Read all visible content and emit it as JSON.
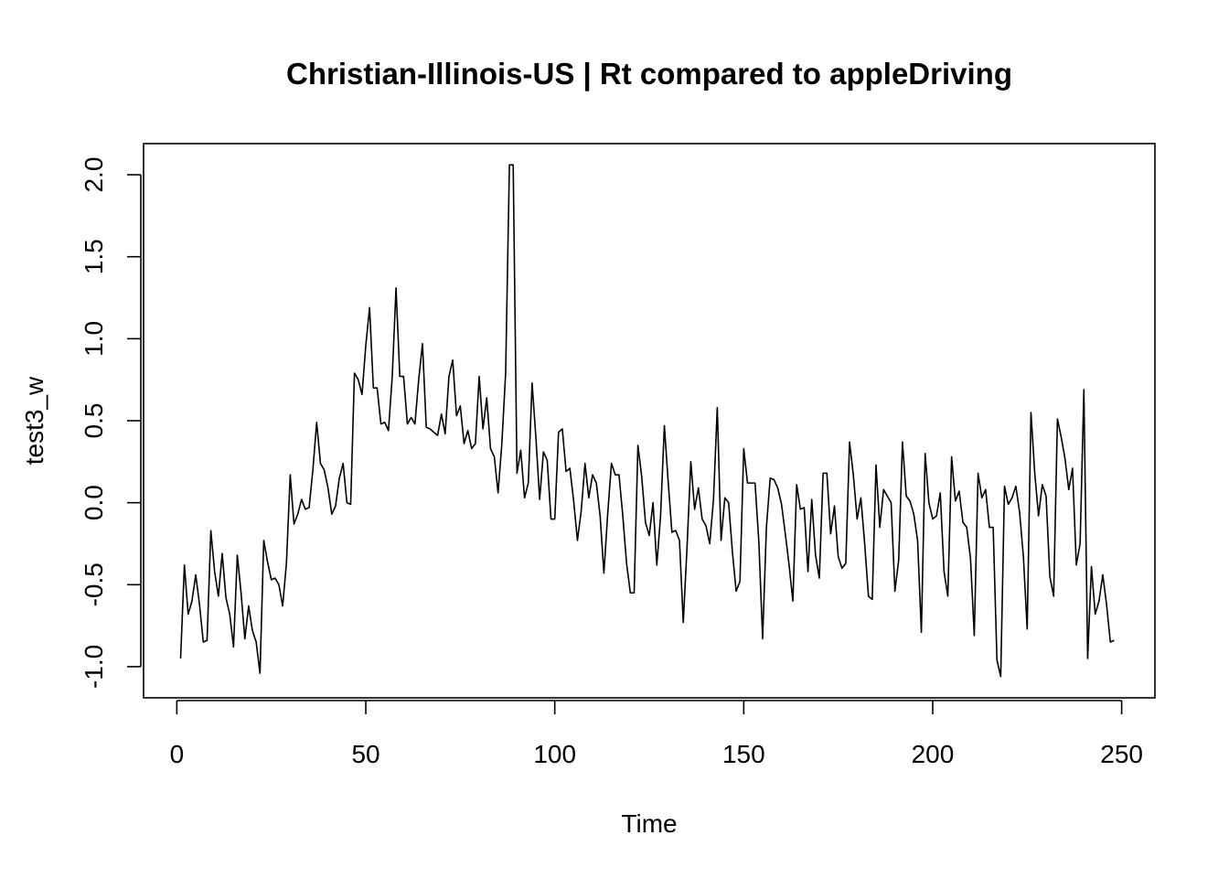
{
  "chart_data": {
    "type": "line",
    "title": "Christian-Illinois-US | Rt compared to appleDriving",
    "xlabel": "Time",
    "ylabel": "test3_w",
    "xlim": [
      -8.8,
      258.8
    ],
    "ylim": [
      -1.19,
      2.19
    ],
    "x_ticks": [
      0,
      50,
      100,
      150,
      200,
      250
    ],
    "x_tick_labels": [
      "0",
      "50",
      "100",
      "150",
      "200",
      "250"
    ],
    "y_ticks": [
      -1.0,
      -0.5,
      0.0,
      0.5,
      1.0,
      1.5,
      2.0
    ],
    "y_tick_labels": [
      "-1.0",
      "-0.5",
      "0.0",
      "0.5",
      "1.0",
      "1.5",
      "2.0"
    ],
    "grid": false,
    "legend": "none",
    "series": [
      {
        "color": "#000000",
        "x": [
          1,
          2,
          3,
          4,
          5,
          6,
          7,
          8,
          9,
          10,
          11,
          12,
          13,
          14,
          15,
          16,
          17,
          18,
          19,
          20,
          21,
          22,
          23,
          24,
          25,
          26,
          27,
          28,
          29,
          30,
          31,
          32,
          33,
          34,
          35,
          36,
          37,
          38,
          39,
          40,
          41,
          42,
          43,
          44,
          45,
          46,
          47,
          48,
          49,
          50,
          51,
          52,
          53,
          54,
          55,
          56,
          57,
          58,
          59,
          60,
          61,
          62,
          63,
          64,
          65,
          66,
          67,
          68,
          69,
          70,
          71,
          72,
          73,
          74,
          75,
          76,
          77,
          78,
          79,
          80,
          81,
          82,
          83,
          84,
          85,
          86,
          87,
          88,
          89,
          90,
          91,
          92,
          93,
          94,
          95,
          96,
          97,
          98,
          99,
          100,
          101,
          102,
          103,
          104,
          105,
          106,
          107,
          108,
          109,
          110,
          111,
          112,
          113,
          114,
          115,
          116,
          117,
          118,
          119,
          120,
          121,
          122,
          123,
          124,
          125,
          126,
          127,
          128,
          129,
          130,
          131,
          132,
          133,
          134,
          135,
          136,
          137,
          138,
          139,
          140,
          141,
          142,
          143,
          144,
          145,
          146,
          147,
          148,
          149,
          150,
          151,
          152,
          153,
          154,
          155,
          156,
          157,
          158,
          159,
          160,
          161,
          162,
          163,
          164,
          165,
          166,
          167,
          168,
          169,
          170,
          171,
          172,
          173,
          174,
          175,
          176,
          177,
          178,
          179,
          180,
          181,
          182,
          183,
          184,
          185,
          186,
          187,
          188,
          189,
          190,
          191,
          192,
          193,
          194,
          195,
          196,
          197,
          198,
          199,
          200,
          201,
          202,
          203,
          204,
          205,
          206,
          207,
          208,
          209,
          210,
          211,
          212,
          213,
          214,
          215,
          216,
          217,
          218,
          219,
          220,
          221,
          222,
          223,
          224,
          225,
          226,
          227,
          228,
          229,
          230,
          231,
          232,
          233,
          234,
          235,
          236,
          237,
          238,
          239,
          240,
          241,
          242,
          243,
          244,
          245,
          246,
          247,
          248
        ],
        "y": [
          -0.95,
          -0.38,
          -0.68,
          -0.6,
          -0.44,
          -0.62,
          -0.85,
          -0.84,
          -0.17,
          -0.42,
          -0.57,
          -0.31,
          -0.58,
          -0.68,
          -0.88,
          -0.32,
          -0.55,
          -0.83,
          -0.63,
          -0.78,
          -0.85,
          -1.04,
          -0.23,
          -0.36,
          -0.47,
          -0.46,
          -0.5,
          -0.63,
          -0.37,
          0.17,
          -0.13,
          -0.07,
          0.02,
          -0.04,
          -0.03,
          0.2,
          0.49,
          0.24,
          0.2,
          0.09,
          -0.07,
          -0.02,
          0.15,
          0.24,
          -0.0,
          -0.01,
          0.79,
          0.75,
          0.66,
          0.96,
          1.19,
          0.7,
          0.7,
          0.48,
          0.49,
          0.44,
          0.77,
          1.31,
          0.77,
          0.77,
          0.48,
          0.52,
          0.48,
          0.75,
          0.97,
          0.46,
          0.45,
          0.43,
          0.41,
          0.54,
          0.42,
          0.77,
          0.87,
          0.53,
          0.59,
          0.36,
          0.44,
          0.33,
          0.36,
          0.77,
          0.45,
          0.64,
          0.33,
          0.28,
          0.06,
          0.36,
          0.79,
          2.06,
          2.06,
          0.18,
          0.32,
          0.03,
          0.12,
          0.73,
          0.4,
          0.02,
          0.31,
          0.26,
          -0.1,
          -0.1,
          0.43,
          0.45,
          0.19,
          0.21,
          0.01,
          -0.23,
          -0.05,
          0.24,
          0.03,
          0.17,
          0.12,
          -0.08,
          -0.43,
          -0.07,
          0.24,
          0.17,
          0.17,
          -0.08,
          -0.37,
          -0.55,
          -0.55,
          0.35,
          0.16,
          -0.12,
          -0.2,
          0.0,
          -0.38,
          -0.08,
          0.47,
          0.13,
          -0.18,
          -0.17,
          -0.23,
          -0.73,
          -0.27,
          0.25,
          -0.04,
          0.09,
          -0.1,
          -0.14,
          -0.25,
          0.02,
          0.58,
          -0.23,
          0.03,
          0.0,
          -0.3,
          -0.54,
          -0.48,
          0.33,
          0.12,
          0.12,
          0.12,
          -0.24,
          -0.83,
          -0.15,
          0.15,
          0.14,
          0.09,
          -0.01,
          -0.19,
          -0.38,
          -0.6,
          0.11,
          -0.04,
          -0.03,
          -0.42,
          0.02,
          -0.32,
          -0.46,
          0.18,
          0.18,
          -0.19,
          -0.02,
          -0.33,
          -0.4,
          -0.37,
          0.37,
          0.17,
          -0.1,
          0.03,
          -0.25,
          -0.57,
          -0.59,
          0.23,
          -0.15,
          0.08,
          0.04,
          0.0,
          -0.54,
          -0.35,
          0.37,
          0.04,
          0.01,
          -0.07,
          -0.23,
          -0.79,
          0.3,
          0.0,
          -0.1,
          -0.08,
          0.06,
          -0.42,
          -0.57,
          0.28,
          0.01,
          0.07,
          -0.12,
          -0.15,
          -0.34,
          -0.81,
          0.18,
          0.03,
          0.08,
          -0.15,
          -0.15,
          -0.96,
          -1.06,
          0.1,
          -0.01,
          0.03,
          0.1,
          -0.06,
          -0.33,
          -0.77,
          0.55,
          0.18,
          -0.08,
          0.11,
          0.04,
          -0.45,
          -0.57,
          0.51,
          0.4,
          0.27,
          0.08,
          0.21,
          -0.38,
          -0.25,
          0.69,
          -0.95,
          -0.39,
          -0.68,
          -0.6,
          -0.44,
          -0.62,
          -0.85,
          -0.84
        ]
      }
    ]
  }
}
